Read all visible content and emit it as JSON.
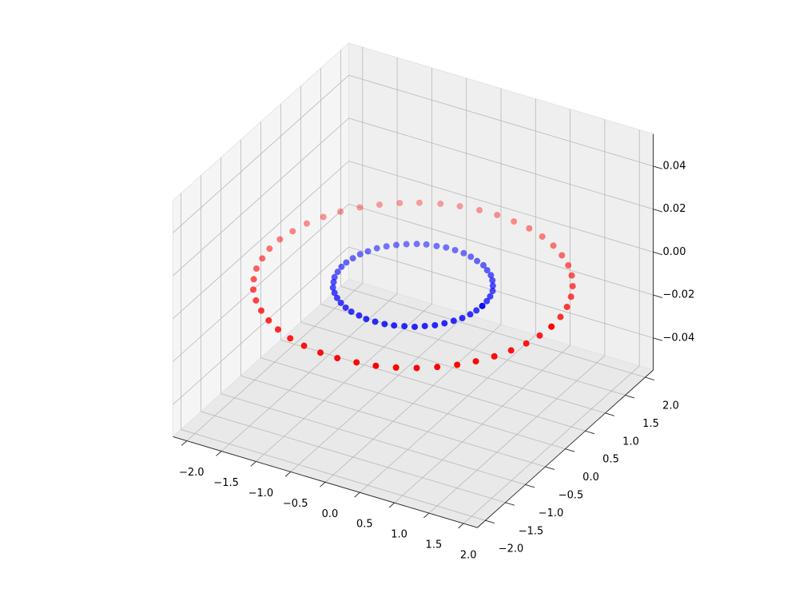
{
  "chart_data": {
    "type": "scatter3d",
    "xlim": [
      -2.2,
      2.2
    ],
    "ylim": [
      -2.2,
      2.2
    ],
    "zlim": [
      -0.055,
      0.055
    ],
    "xticks": [
      {
        "value": -2,
        "label": "−2.0"
      },
      {
        "value": -1.5,
        "label": "−1.5"
      },
      {
        "value": -1,
        "label": "−1.0"
      },
      {
        "value": -0.5,
        "label": "−0.5"
      },
      {
        "value": 0,
        "label": "0.0"
      },
      0.5,
      {
        "value": 1,
        "label": "1.0"
      },
      1.5,
      {
        "value": 2,
        "label": "2.0"
      }
    ],
    "yticks": [
      {
        "value": -2,
        "label": "−2.0"
      },
      {
        "value": -1.5,
        "label": "−1.5"
      },
      {
        "value": -1,
        "label": "−1.0"
      },
      {
        "value": -0.5,
        "label": "−0.5"
      },
      {
        "value": 0,
        "label": "0.0"
      },
      0.5,
      {
        "value": 1,
        "label": "1.0"
      },
      1.5,
      {
        "value": 2,
        "label": "2.0"
      }
    ],
    "zticks": [
      {
        "value": -0.04,
        "label": "−0.04"
      },
      {
        "value": -0.02,
        "label": "−0.02"
      },
      {
        "value": 0,
        "label": "0.00"
      },
      0.02,
      0.04
    ],
    "grid": true,
    "depthshade": true,
    "series": [
      {
        "color": "#ff0000",
        "x": [
          2,
          1.98,
          1.93,
          1.85,
          1.74,
          1.6,
          1.44,
          1.25,
          1.04,
          0.81,
          0.57,
          0.32,
          0.06,
          -0.19,
          -0.45,
          -0.69,
          -0.93,
          -1.14,
          -1.34,
          -1.52,
          -1.68,
          -1.8,
          -1.9,
          -1.96,
          -2,
          -2,
          -1.96,
          -1.9,
          -1.8,
          -1.68,
          -1.52,
          -1.34,
          -1.14,
          -0.93,
          -0.69,
          -0.45,
          -0.19,
          0.06,
          0.32,
          0.57,
          0.81,
          1.04,
          1.25,
          1.44,
          1.6,
          1.74,
          1.85,
          1.93,
          1.98,
          2
        ],
        "y": [
          0,
          0.26,
          0.51,
          0.75,
          0.98,
          1.2,
          1.39,
          1.56,
          1.71,
          1.83,
          1.92,
          1.97,
          2,
          1.99,
          1.95,
          1.88,
          1.77,
          1.64,
          1.48,
          1.3,
          1.09,
          0.87,
          0.63,
          0.38,
          0.13,
          -0.13,
          -0.38,
          -0.63,
          -0.87,
          -1.09,
          -1.3,
          -1.48,
          -1.64,
          -1.77,
          -1.88,
          -1.95,
          -1.99,
          -2,
          -1.97,
          -1.92,
          -1.83,
          -1.71,
          -1.56,
          -1.39,
          -1.2,
          -0.98,
          -0.75,
          -0.51,
          -0.26,
          0
        ],
        "z": [
          0,
          0,
          0,
          0,
          0,
          0,
          0,
          0,
          0,
          0,
          0,
          0,
          0,
          0,
          0,
          0,
          0,
          0,
          0,
          0,
          0,
          0,
          0,
          0,
          0,
          0,
          0,
          0,
          0,
          0,
          0,
          0,
          0,
          0,
          0,
          0,
          0,
          0,
          0,
          0,
          0,
          0,
          0,
          0,
          0,
          0,
          0,
          0,
          0,
          0
        ]
      },
      {
        "color": "#0000ff",
        "x": [
          1,
          0.99,
          0.97,
          0.93,
          0.87,
          0.8,
          0.72,
          0.62,
          0.52,
          0.4,
          0.28,
          0.16,
          0.03,
          -0.1,
          -0.22,
          -0.35,
          -0.46,
          -0.57,
          -0.67,
          -0.76,
          -0.84,
          -0.9,
          -0.95,
          -0.98,
          -1,
          -1,
          -0.98,
          -0.95,
          -0.9,
          -0.84,
          -0.76,
          -0.67,
          -0.57,
          -0.46,
          -0.35,
          -0.22,
          -0.1,
          0.03,
          0.16,
          0.28,
          0.4,
          0.52,
          0.62,
          0.72,
          0.8,
          0.87,
          0.93,
          0.97,
          0.99,
          1
        ],
        "y": [
          0,
          0.13,
          0.25,
          0.38,
          0.49,
          0.6,
          0.7,
          0.78,
          0.86,
          0.91,
          0.96,
          0.99,
          1,
          1,
          0.97,
          0.94,
          0.89,
          0.82,
          0.74,
          0.65,
          0.55,
          0.43,
          0.32,
          0.19,
          0.06,
          -0.06,
          -0.19,
          -0.32,
          -0.43,
          -0.55,
          -0.65,
          -0.74,
          -0.82,
          -0.89,
          -0.94,
          -0.97,
          -1,
          -1,
          -0.99,
          -0.96,
          -0.91,
          -0.86,
          -0.78,
          -0.7,
          -0.6,
          -0.49,
          -0.38,
          -0.25,
          -0.13,
          0
        ],
        "z": [
          0,
          0,
          0,
          0,
          0,
          0,
          0,
          0,
          0,
          0,
          0,
          0,
          0,
          0,
          0,
          0,
          0,
          0,
          0,
          0,
          0,
          0,
          0,
          0,
          0,
          0,
          0,
          0,
          0,
          0,
          0,
          0,
          0,
          0,
          0,
          0,
          0,
          0,
          0,
          0,
          0,
          0,
          0,
          0,
          0,
          0,
          0,
          0,
          0,
          0
        ]
      }
    ]
  }
}
